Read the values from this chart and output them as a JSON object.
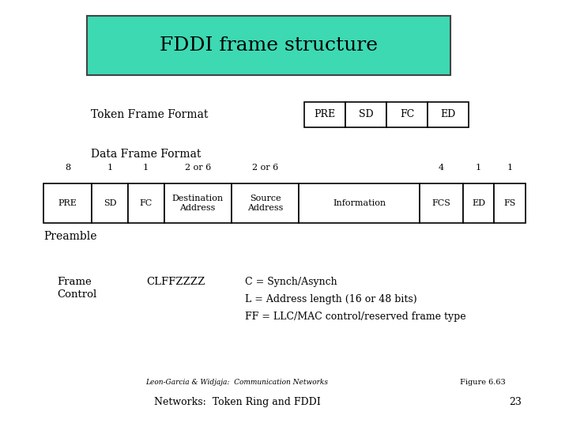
{
  "title": "FDDI frame structure",
  "title_bg_color": "#3DD9B3",
  "title_fontsize": 18,
  "bg_color": "#FFFFFF",
  "token_label": "Token Frame Format",
  "token_fields": [
    "PRE",
    "SD",
    "FC",
    "ED"
  ],
  "data_label": "Data Frame Format",
  "data_fields": [
    "PRE",
    "SD",
    "FC",
    "Destination\nAddress",
    "Source\nAddress",
    "Information",
    "FCS",
    "ED",
    "FS"
  ],
  "data_widths": [
    1.0,
    0.75,
    0.75,
    1.4,
    1.4,
    2.5,
    0.9,
    0.65,
    0.65
  ],
  "data_numbers": [
    "8",
    "1",
    "1",
    "2 or 6",
    "2 or 6",
    "",
    "4",
    "1",
    "1"
  ],
  "preamble_label": "Preamble",
  "frame_control_label1": "Frame",
  "frame_control_label2": "Control",
  "frame_control_code": "CLFFZZZZ",
  "frame_control_desc": [
    "C = Synch/Asynch",
    "L = Address length (16 or 48 bits)",
    "FF = LLC/MAC control/reserved frame type"
  ],
  "footer_left": "Leon-Garcia & Widjaja:  Communication Networks",
  "footer_fig": "Figure 6.63",
  "footer_bottom_left": "Networks:  Token Ring and FDDI",
  "footer_bottom_right": "23"
}
